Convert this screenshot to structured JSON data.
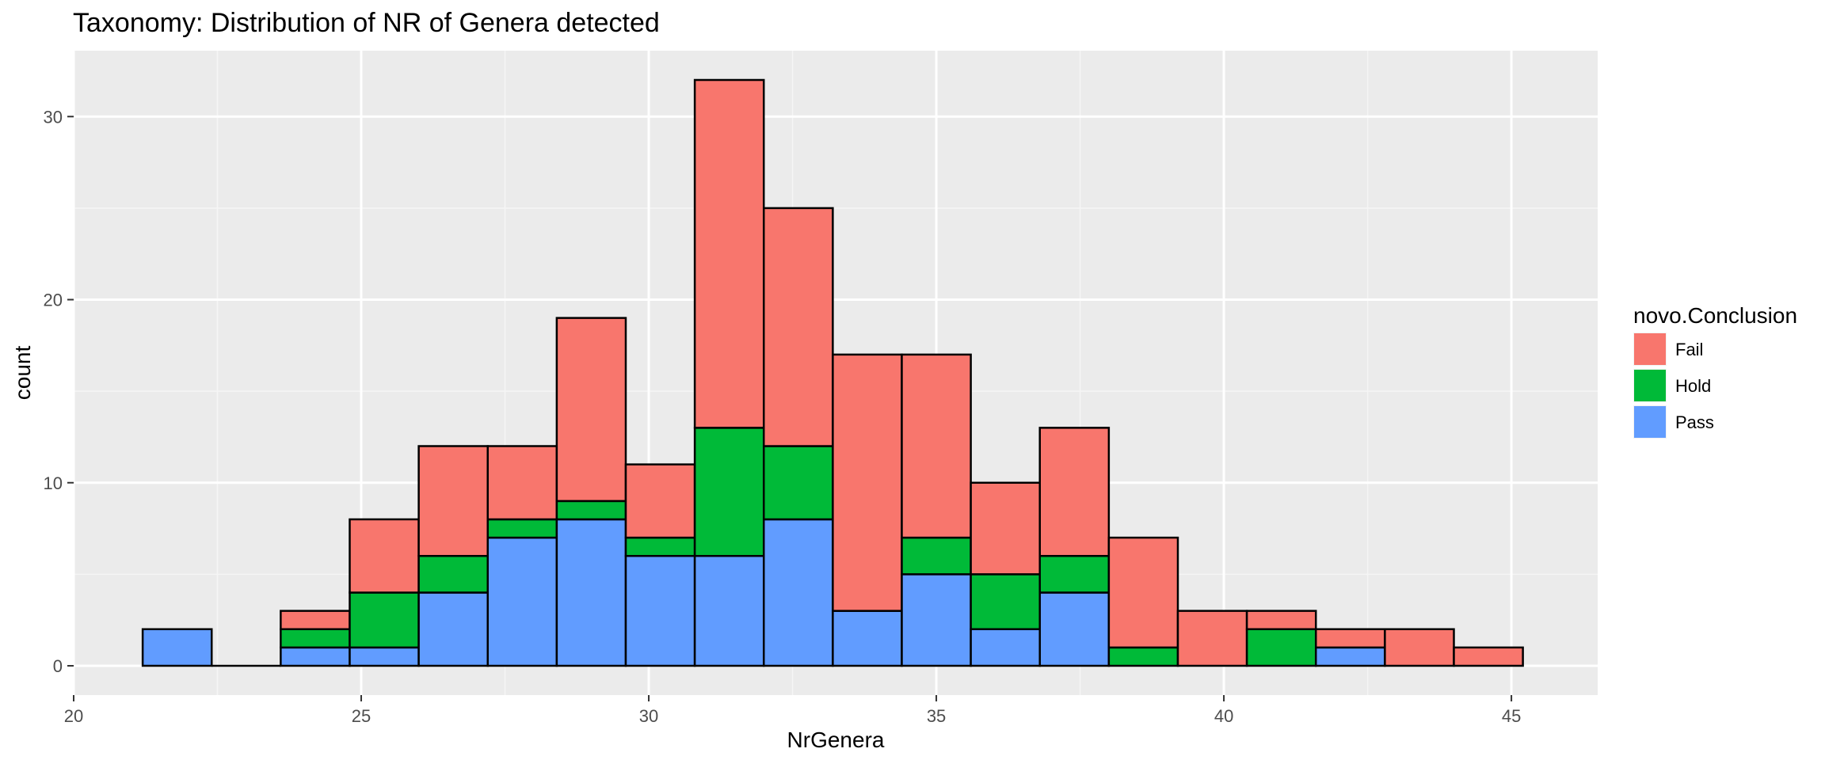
{
  "chart_data": {
    "type": "bar",
    "title": "Taxonomy: Distribution of NR of Genera detected",
    "xlabel": "NrGenera",
    "ylabel": "count",
    "xlim": [
      20,
      46.5
    ],
    "ylim": [
      -1.6,
      33.6
    ],
    "x_ticks": [
      {
        "value": 20,
        "label": "20"
      },
      {
        "value": 25,
        "label": "25"
      },
      {
        "value": 30,
        "label": "30"
      },
      {
        "value": 35,
        "label": "35"
      },
      {
        "value": 40,
        "label": "40"
      },
      {
        "value": 45,
        "label": "45"
      }
    ],
    "y_ticks": [
      {
        "value": 0,
        "label": "0"
      },
      {
        "value": 10,
        "label": "10"
      },
      {
        "value": 20,
        "label": "20"
      },
      {
        "value": 30,
        "label": "30"
      }
    ],
    "grid": true,
    "stacked": true,
    "bin_width": 1.2,
    "bin_edges_start": 21.2,
    "series": [
      {
        "name": "Pass",
        "color": "#619CFF",
        "values": [
          2,
          0,
          1,
          1,
          4,
          7,
          8,
          6,
          6,
          8,
          3,
          5,
          2,
          4,
          0,
          0,
          0,
          1,
          0,
          0
        ]
      },
      {
        "name": "Hold",
        "color": "#00BA38",
        "values": [
          0,
          0,
          1,
          3,
          2,
          1,
          1,
          1,
          7,
          4,
          0,
          2,
          3,
          2,
          1,
          0,
          2,
          0,
          0,
          0
        ]
      },
      {
        "name": "Fail",
        "color": "#F8766D",
        "values": [
          0,
          0,
          1,
          4,
          6,
          4,
          10,
          4,
          19,
          13,
          14,
          10,
          5,
          7,
          6,
          3,
          1,
          1,
          2,
          1
        ]
      }
    ],
    "legend": {
      "title": "novo.Conclusion",
      "placement": "right",
      "entries": [
        {
          "label": "Fail",
          "color": "#F8766D"
        },
        {
          "label": "Hold",
          "color": "#00BA38"
        },
        {
          "label": "Pass",
          "color": "#619CFF"
        }
      ]
    }
  }
}
